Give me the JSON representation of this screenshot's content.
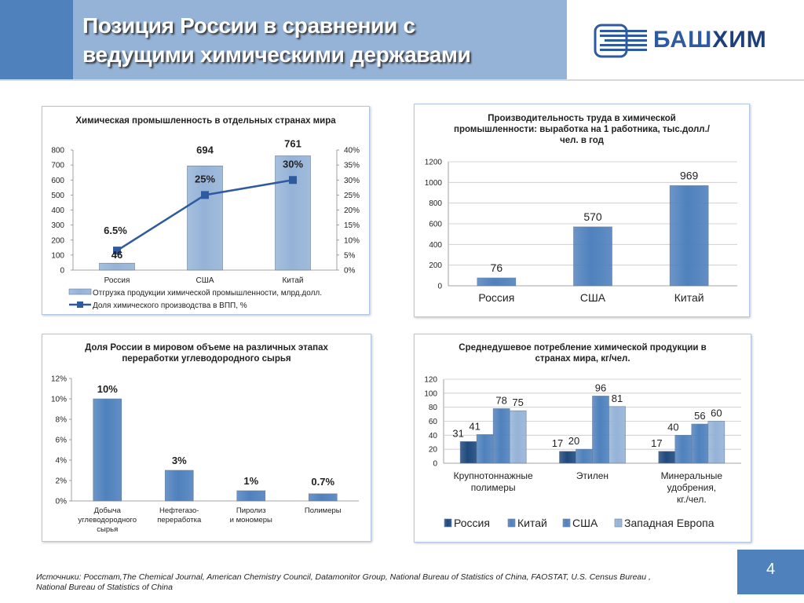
{
  "header": {
    "title_line1": "Позиция России в сравнении с",
    "title_line2": "ведущими химическими державами",
    "logo_text_a": "БАШ",
    "logo_text_b": "ХИМ"
  },
  "chart_data": [
    {
      "type": "bar",
      "title": "Химическая промышленность в отдельных странах мира",
      "categories": [
        "Россия",
        "США",
        "Китай"
      ],
      "series": [
        {
          "name": "Отгрузка продукции химической промышленности, млрд.долл.",
          "type": "bar",
          "axis": "left",
          "values": [
            46,
            694,
            761
          ],
          "labels": [
            "46",
            "694",
            "761"
          ]
        },
        {
          "name": "Доля химического производства в ВПП, %",
          "type": "line",
          "axis": "right",
          "values": [
            6.5,
            25,
            30
          ],
          "labels": [
            "6.5%",
            "25%",
            "30%"
          ]
        }
      ],
      "ylim": [
        0,
        800
      ],
      "yticks": [
        "0",
        "100",
        "200",
        "300",
        "400",
        "500",
        "600",
        "700",
        "800"
      ],
      "y2lim": [
        0,
        40
      ],
      "y2ticks": [
        "0%",
        "5%",
        "10%",
        "15%",
        "20%",
        "25%",
        "30%",
        "35%",
        "40%"
      ],
      "legend": "bottom"
    },
    {
      "type": "bar",
      "title": "Производительность труда в химической промышленности: выработка на 1 работника, тыс.долл./чел. в год",
      "categories": [
        "Россия",
        "США",
        "Китай"
      ],
      "values": [
        76,
        570,
        969
      ],
      "labels": [
        "76",
        "570",
        "969"
      ],
      "ylim": [
        0,
        1200
      ],
      "yticks": [
        "0",
        "200",
        "400",
        "600",
        "800",
        "1000",
        "1200"
      ]
    },
    {
      "type": "bar",
      "title": "Доля России в мировом объеме на различных этапах переработки углеводородного сырья",
      "categories": [
        "Добыча углеводородного сырья",
        "Нефтегазо-переработка",
        "Пиролиз и мономеры",
        "Полимеры"
      ],
      "values": [
        10,
        3,
        1,
        0.7
      ],
      "labels": [
        "10%",
        "3%",
        "1%",
        "0.7%"
      ],
      "ylim": [
        0,
        12
      ],
      "yticks": [
        "0%",
        "2%",
        "4%",
        "6%",
        "8%",
        "10%",
        "12%"
      ]
    },
    {
      "type": "bar",
      "title": "Среднедушевое потребление химической продукции в странах мира, кг/чел.",
      "categories": [
        "Крупнотоннажные полимеры",
        "Этилен",
        "Минеральные удобрения, кг./чел."
      ],
      "series": [
        {
          "name": "Россия",
          "values": [
            31,
            17,
            17
          ]
        },
        {
          "name": "Китай",
          "values": [
            41,
            20,
            40
          ]
        },
        {
          "name": "США",
          "values": [
            78,
            96,
            56
          ]
        },
        {
          "name": "Западная Европа",
          "values": [
            75,
            81,
            60
          ]
        }
      ],
      "ylim": [
        0,
        120
      ],
      "yticks": [
        "0",
        "20",
        "40",
        "60",
        "80",
        "100",
        "120"
      ],
      "legend": "bottom"
    }
  ],
  "colors": {
    "bar_light": "#95b3d7",
    "bar_blue": "#4f81bd",
    "bar_dark": "#1f497d",
    "line": "#2e5aa0",
    "header_blue": "#4f81bd",
    "header_light": "#95b3d7"
  },
  "footer": {
    "sources_line1": "Источники: Росстат,The Chemical Journal, American Chemistry Council, Datamonitor Group, National Bureau of Statistics of China, FAOSTAT,  U.S. Census Bureau ,",
    "sources_line2": "National Bureau of Statistics of China",
    "page_number": "4"
  }
}
